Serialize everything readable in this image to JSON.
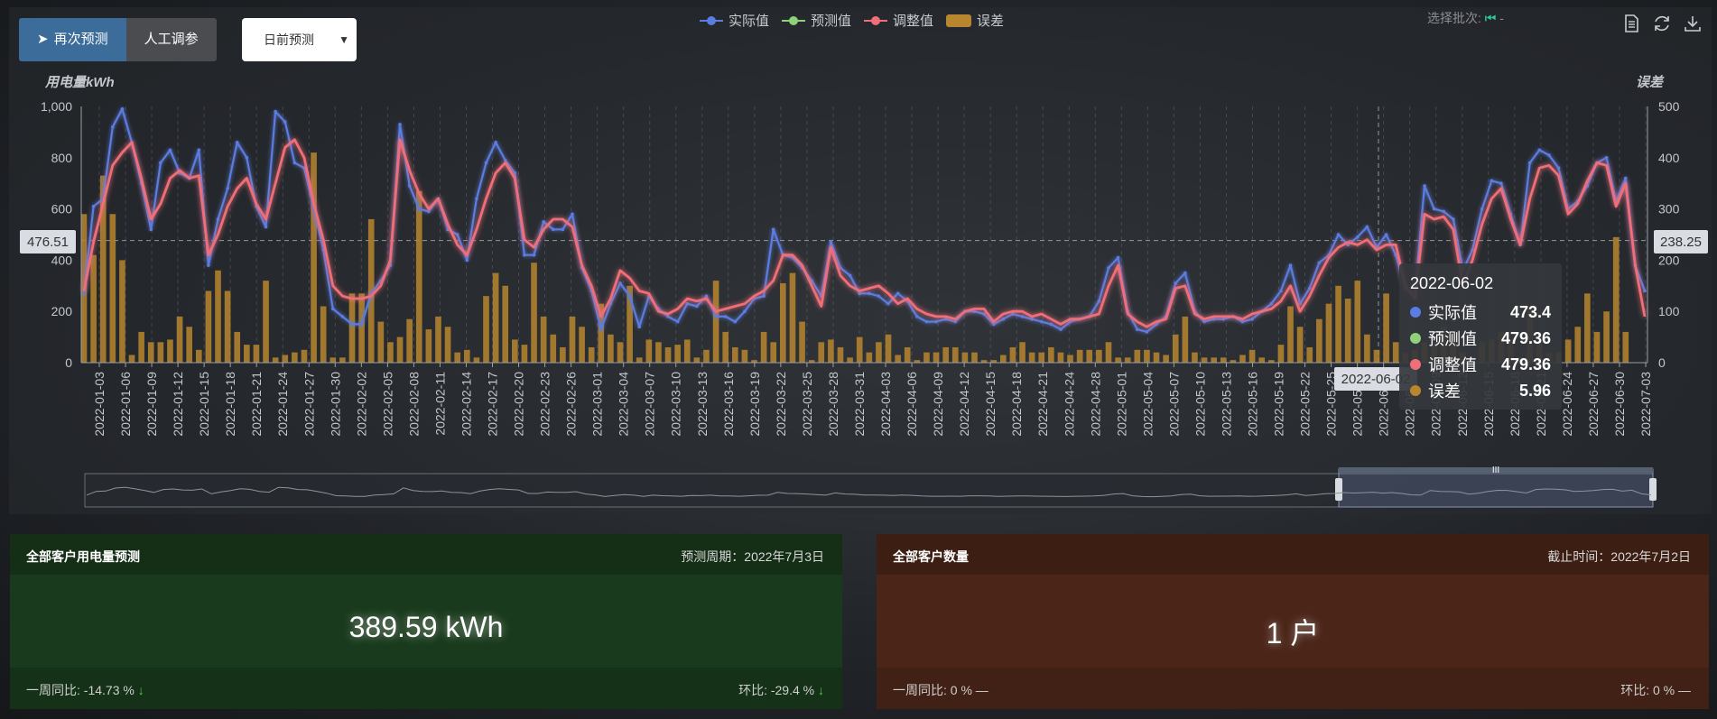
{
  "buttons": {
    "repredict": "再次预测",
    "manual": "人工调参"
  },
  "select": {
    "value": "日前预测"
  },
  "batch": {
    "label": "选择批次:",
    "value": "-"
  },
  "legend": [
    {
      "name": "实际值",
      "color": "#5b7ce0"
    },
    {
      "name": "预测值",
      "color": "#8fd07a"
    },
    {
      "name": "调整值",
      "color": "#f06e78"
    },
    {
      "name": "误差",
      "color": "#b7862e"
    }
  ],
  "chart_data": {
    "type": "line",
    "title": "",
    "ylabel_left": "用电量kWh",
    "ylabel_right": "误差",
    "ylim_left": [
      0,
      1000
    ],
    "ylim_right": [
      0,
      500
    ],
    "yticks_left": [
      "0",
      "200",
      "400",
      "600",
      "800",
      "1,000"
    ],
    "yticks_right": [
      "0",
      "100",
      "200",
      "300",
      "400",
      "500"
    ],
    "x_tick_labels": [
      "2022-01-03",
      "2022-01-06",
      "2022-01-09",
      "2022-01-12",
      "2022-01-15",
      "2022-01-18",
      "2022-01-21",
      "2022-01-24",
      "2022-01-27",
      "2022-01-30",
      "2022-02-02",
      "2022-02-05",
      "2022-02-08",
      "2022-02-11",
      "2022-02-14",
      "2022-02-17",
      "2022-02-20",
      "2022-02-23",
      "2022-02-26",
      "2022-03-01",
      "2022-03-04",
      "2022-03-07",
      "2022-03-10",
      "2022-03-13",
      "2022-03-16",
      "2022-03-19",
      "2022-03-22",
      "2022-03-25",
      "2022-03-28",
      "2022-03-31",
      "2022-04-03",
      "2022-04-06",
      "2022-04-09",
      "2022-04-12",
      "2022-04-15",
      "2022-04-18",
      "2022-04-21",
      "2022-04-24",
      "2022-04-28",
      "2022-05-01",
      "2022-05-04",
      "2022-05-07",
      "2022-05-10",
      "2022-05-13",
      "2022-05-16",
      "2022-05-19",
      "2022-05-22",
      "2022-05-25",
      "2022-05-28",
      "2022-06-02",
      "2022-06-06",
      "2022-06-09",
      "2022-06-12",
      "2022-06-15",
      "2022-06-18",
      "2022-06-21",
      "2022-06-24",
      "2022-06-27",
      "2022-06-30",
      "2022-07-03"
    ],
    "axis_pointer": {
      "left_value": "476.51",
      "right_value": "238.25",
      "x_label": "2022-06-02"
    },
    "series": [
      {
        "name": "实际值",
        "color": "#5b7ce0",
        "values": [
          270,
          610,
          640,
          920,
          990,
          860,
          700,
          520,
          780,
          830,
          740,
          720,
          830,
          380,
          560,
          680,
          860,
          800,
          610,
          530,
          980,
          940,
          780,
          760,
          600,
          440,
          210,
          180,
          150,
          150,
          270,
          320,
          380,
          930,
          690,
          600,
          590,
          640,
          520,
          500,
          400,
          640,
          780,
          860,
          790,
          740,
          420,
          420,
          550,
          520,
          520,
          580,
          370,
          280,
          130,
          230,
          310,
          260,
          140,
          260,
          210,
          180,
          160,
          230,
          220,
          260,
          180,
          180,
          160,
          200,
          250,
          260,
          520,
          420,
          410,
          370,
          320,
          260,
          470,
          370,
          340,
          270,
          270,
          260,
          230,
          270,
          240,
          180,
          160,
          160,
          170,
          160,
          200,
          200,
          190,
          150,
          170,
          190,
          180,
          170,
          160,
          150,
          130,
          160,
          170,
          180,
          240,
          370,
          410,
          200,
          130,
          120,
          150,
          180,
          310,
          350,
          200,
          160,
          170,
          170,
          180,
          160,
          170,
          200,
          230,
          280,
          380,
          230,
          290,
          390,
          420,
          500,
          460,
          490,
          530,
          450,
          500,
          420,
          290,
          270,
          690,
          600,
          590,
          560,
          360,
          440,
          600,
          710,
          700,
          580,
          460,
          780,
          830,
          810,
          760,
          600,
          630,
          690,
          780,
          800,
          630,
          720,
          380,
          280
        ]
      },
      {
        "name": "预测值",
        "color": "#8fd07a",
        "values": [
          280,
          480,
          620,
          770,
          820,
          860,
          720,
          560,
          620,
          720,
          750,
          720,
          730,
          420,
          500,
          610,
          680,
          720,
          620,
          560,
          700,
          840,
          870,
          800,
          620,
          480,
          300,
          260,
          250,
          250,
          260,
          300,
          400,
          870,
          750,
          660,
          600,
          640,
          540,
          460,
          420,
          520,
          640,
          740,
          780,
          720,
          480,
          450,
          520,
          560,
          560,
          530,
          380,
          300,
          180,
          250,
          360,
          330,
          280,
          270,
          200,
          190,
          210,
          250,
          240,
          250,
          200,
          210,
          220,
          230,
          260,
          280,
          320,
          420,
          420,
          380,
          300,
          220,
          450,
          340,
          300,
          280,
          290,
          300,
          270,
          230,
          250,
          210,
          190,
          180,
          180,
          170,
          200,
          210,
          210,
          160,
          190,
          200,
          200,
          180,
          190,
          170,
          150,
          170,
          170,
          180,
          190,
          300,
          380,
          190,
          160,
          140,
          160,
          170,
          290,
          300,
          190,
          170,
          180,
          180,
          180,
          170,
          190,
          200,
          210,
          240,
          300,
          200,
          260,
          340,
          410,
          450,
          470,
          460,
          480,
          440,
          460,
          460,
          300,
          250,
          580,
          560,
          570,
          520,
          300,
          400,
          540,
          640,
          680,
          560,
          460,
          640,
          760,
          770,
          730,
          580,
          620,
          710,
          780,
          770,
          610,
          700,
          380,
          180
        ]
      },
      {
        "name": "调整值",
        "color": "#f06e78",
        "values": [
          280,
          470,
          620,
          770,
          820,
          860,
          720,
          560,
          620,
          720,
          750,
          720,
          730,
          420,
          500,
          610,
          680,
          720,
          620,
          560,
          700,
          840,
          870,
          800,
          620,
          480,
          300,
          260,
          250,
          250,
          260,
          300,
          400,
          870,
          750,
          660,
          600,
          640,
          540,
          460,
          420,
          520,
          640,
          740,
          780,
          720,
          480,
          450,
          520,
          560,
          560,
          530,
          380,
          300,
          180,
          250,
          360,
          330,
          280,
          270,
          200,
          190,
          210,
          250,
          240,
          250,
          200,
          210,
          220,
          230,
          260,
          280,
          320,
          420,
          420,
          380,
          300,
          220,
          450,
          340,
          300,
          280,
          290,
          300,
          270,
          230,
          250,
          210,
          190,
          180,
          180,
          170,
          200,
          210,
          210,
          160,
          190,
          200,
          200,
          180,
          190,
          170,
          150,
          170,
          170,
          180,
          190,
          300,
          380,
          190,
          160,
          140,
          160,
          170,
          290,
          300,
          190,
          170,
          180,
          180,
          180,
          170,
          190,
          200,
          210,
          240,
          300,
          200,
          260,
          340,
          410,
          450,
          470,
          460,
          480,
          440,
          460,
          460,
          300,
          250,
          580,
          560,
          570,
          520,
          300,
          400,
          540,
          640,
          680,
          560,
          460,
          640,
          760,
          770,
          730,
          580,
          620,
          710,
          780,
          770,
          610,
          700,
          380,
          180
        ]
      },
      {
        "name": "误差",
        "color": "#b7862e",
        "type": "bar",
        "values": [
          290,
          210,
          365,
          290,
          200,
          15,
          60,
          40,
          40,
          45,
          90,
          70,
          25,
          140,
          180,
          140,
          60,
          35,
          35,
          160,
          10,
          15,
          20,
          25,
          410,
          110,
          10,
          10,
          135,
          135,
          280,
          80,
          40,
          50,
          85,
          335,
          65,
          90,
          70,
          20,
          25,
          10,
          130,
          175,
          150,
          45,
          35,
          195,
          90,
          55,
          30,
          90,
          70,
          30,
          115,
          55,
          40,
          150,
          10,
          45,
          40,
          30,
          35,
          45,
          10,
          25,
          160,
          60,
          30,
          25,
          5,
          60,
          40,
          155,
          175,
          80,
          5,
          40,
          45,
          30,
          10,
          50,
          20,
          40,
          55,
          15,
          30,
          5,
          20,
          20,
          30,
          30,
          20,
          20,
          5,
          5,
          15,
          30,
          40,
          20,
          20,
          30,
          20,
          15,
          25,
          25,
          25,
          40,
          10,
          10,
          25,
          25,
          20,
          15,
          55,
          90,
          20,
          10,
          10,
          10,
          5,
          15,
          25,
          10,
          5,
          35,
          110,
          70,
          30,
          85,
          115,
          150,
          125,
          160,
          55,
          25,
          135,
          40,
          20,
          25,
          40,
          40,
          70,
          55,
          20,
          10,
          40,
          45,
          60,
          45,
          10,
          110,
          40,
          20,
          20,
          45,
          70,
          135,
          60,
          100,
          245,
          60
        ]
      }
    ]
  },
  "tooltip": {
    "date": "2022-06-02",
    "rows": [
      {
        "name": "实际值",
        "value": "473.4",
        "color": "#5b7ce0"
      },
      {
        "name": "预测值",
        "value": "479.36",
        "color": "#8fd07a"
      },
      {
        "name": "调整值",
        "value": "479.36",
        "color": "#f06e78"
      },
      {
        "name": "误差",
        "value": "5.96",
        "color": "#b7862e"
      }
    ]
  },
  "cards": {
    "prediction": {
      "title": "全部客户用电量预测",
      "period": "预测周期：2022年7月3日",
      "value": "389.59 kWh",
      "week": "一周同比: -14.73 %",
      "week_arrow": "↓",
      "ring": "环比: -29.4 %",
      "ring_arrow": "↓"
    },
    "customers": {
      "title": "全部客户数量",
      "period": "截止时间：2022年7月2日",
      "value": "1 户",
      "week": "一周同比: 0 %",
      "week_arrow": "—",
      "ring": "环比: 0 %",
      "ring_arrow": "—"
    }
  }
}
